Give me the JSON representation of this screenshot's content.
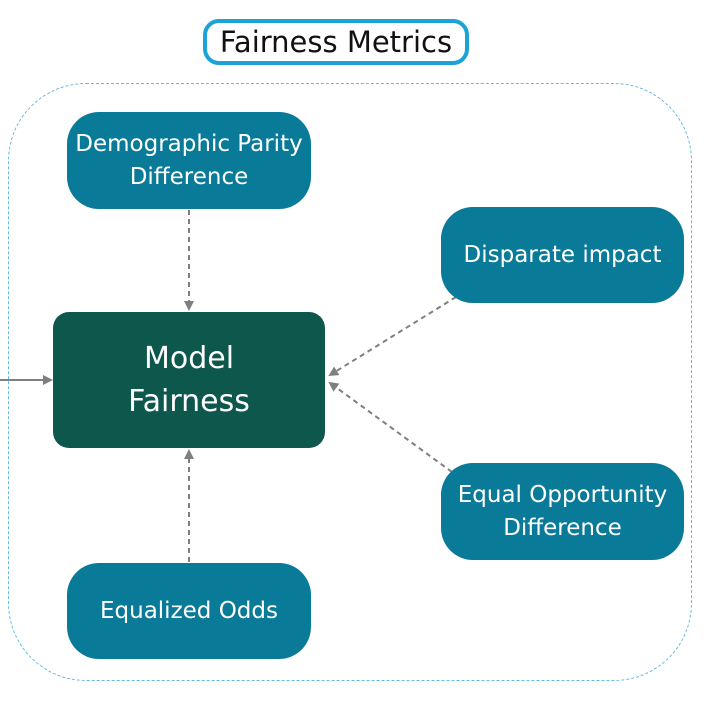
{
  "title": "Fairness Metrics",
  "center": {
    "line1": "Model",
    "line2": "Fairness"
  },
  "nodes": {
    "demographic_parity": {
      "line1": "Demographic Parity",
      "line2": "Difference"
    },
    "disparate_impact": {
      "line1": "Disparate impact"
    },
    "equal_opportunity": {
      "line1": "Equal Opportunity",
      "line2": "Difference"
    },
    "equalized_odds": {
      "line1": "Equalized Odds"
    }
  },
  "colors": {
    "metric_node": "#0a7a99",
    "center_node": "#0e574d",
    "title_border": "#1aa3d4",
    "container_border": "#66b8e2",
    "arrow": "#7f7f7f"
  }
}
